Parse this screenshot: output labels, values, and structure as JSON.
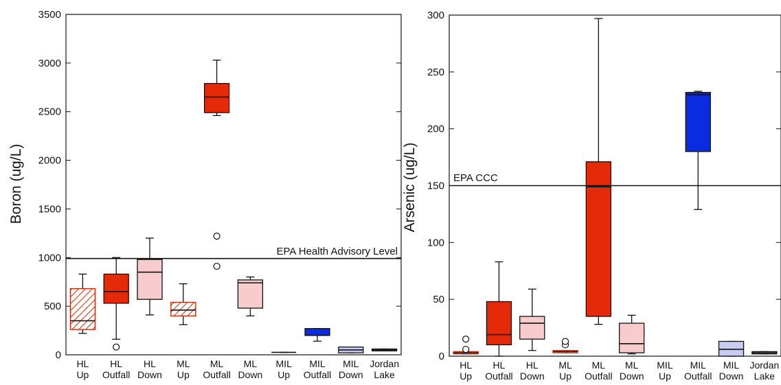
{
  "chart_data": [
    {
      "type": "box",
      "ylabel": "Boron (ug/L)",
      "ylim": [
        0,
        3500
      ],
      "yticks": [
        0,
        500,
        1000,
        1500,
        2000,
        2500,
        3000,
        3500
      ],
      "categories": [
        [
          "HL",
          "Up"
        ],
        [
          "HL",
          "Outfall"
        ],
        [
          "HL",
          "Down"
        ],
        [
          "ML",
          "Up"
        ],
        [
          "ML",
          "Outfall"
        ],
        [
          "ML",
          "Down"
        ],
        [
          "MIL",
          "Up"
        ],
        [
          "MIL",
          "Outfall"
        ],
        [
          "MIL",
          "Down"
        ],
        [
          "Jordan",
          "Lake"
        ]
      ],
      "boxes": [
        {
          "whisker_low": 220,
          "q1": 260,
          "median": 350,
          "q3": 680,
          "whisker_high": 830,
          "outliers": [],
          "fill": "#ffffff",
          "stroke": "#cc2200",
          "hatch": true
        },
        {
          "whisker_low": 160,
          "q1": 530,
          "median": 650,
          "q3": 830,
          "whisker_high": 1000,
          "outliers": [
            80
          ],
          "fill": "#e42a08",
          "stroke": "#111111",
          "hatch": false
        },
        {
          "whisker_low": 410,
          "q1": 570,
          "median": 850,
          "q3": 980,
          "whisker_high": 1200,
          "outliers": [],
          "fill": "#f8cccc",
          "stroke": "#111111",
          "hatch": false
        },
        {
          "whisker_low": 310,
          "q1": 400,
          "median": 460,
          "q3": 540,
          "whisker_high": 730,
          "outliers": [],
          "fill": "#ffffff",
          "stroke": "#cc2200",
          "hatch": true
        },
        {
          "whisker_low": 2460,
          "q1": 2490,
          "median": 2650,
          "q3": 2790,
          "whisker_high": 3030,
          "outliers": [
            1220,
            910
          ],
          "fill": "#e42a08",
          "stroke": "#111111",
          "hatch": false
        },
        {
          "whisker_low": 400,
          "q1": 480,
          "median": 740,
          "q3": 770,
          "whisker_high": 800,
          "outliers": [],
          "fill": "#f8cccc",
          "stroke": "#111111",
          "hatch": false
        },
        {
          "whisker_low": 25,
          "q1": 25,
          "median": 25,
          "q3": 25,
          "whisker_high": 25,
          "outliers": [],
          "fill": "#ffffff",
          "stroke": "#111111",
          "hatch": false,
          "line_only": true
        },
        {
          "whisker_low": 140,
          "q1": 200,
          "median": 200,
          "q3": 270,
          "whisker_high": 270,
          "outliers": [],
          "fill": "#0a2be0",
          "stroke": "#111111",
          "hatch": false
        },
        {
          "whisker_low": 20,
          "q1": 20,
          "median": 50,
          "q3": 80,
          "whisker_high": 80,
          "outliers": [],
          "fill": "#c9cbf2",
          "stroke": "#111111",
          "hatch": false
        },
        {
          "whisker_low": 40,
          "q1": 40,
          "median": 50,
          "q3": 60,
          "whisker_high": 60,
          "outliers": [],
          "fill": "#c9cbf2",
          "stroke": "#111111",
          "hatch": false
        }
      ],
      "reference_line": {
        "value": 990,
        "label": "EPA Health Advisory Level"
      }
    },
    {
      "type": "box",
      "ylabel": "Arsenic (ug/L)",
      "ylim": [
        0,
        300
      ],
      "yticks": [
        0,
        50,
        100,
        150,
        200,
        250,
        300
      ],
      "categories": [
        [
          "HL",
          "Up"
        ],
        [
          "HL",
          "Outfall"
        ],
        [
          "HL",
          "Down"
        ],
        [
          "ML",
          "Up"
        ],
        [
          "ML",
          "Outfall"
        ],
        [
          "ML",
          "Down"
        ],
        [
          "MIL",
          "Up"
        ],
        [
          "MIL",
          "Outfall"
        ],
        [
          "MIL",
          "Down"
        ],
        [
          "Jordan",
          "Lake"
        ]
      ],
      "boxes": [
        {
          "whisker_low": 2,
          "q1": 2,
          "median": 3,
          "q3": 4,
          "whisker_high": 4,
          "outliers": [
            6,
            15
          ],
          "fill": "#ffffff",
          "stroke": "#cc2200",
          "hatch": true
        },
        {
          "whisker_low": 0,
          "q1": 10,
          "median": 19,
          "q3": 48,
          "whisker_high": 83,
          "outliers": [],
          "fill": "#e42a08",
          "stroke": "#111111",
          "hatch": false
        },
        {
          "whisker_low": 5,
          "q1": 15,
          "median": 29,
          "q3": 35,
          "whisker_high": 59,
          "outliers": [],
          "fill": "#f8cccc",
          "stroke": "#111111",
          "hatch": false
        },
        {
          "whisker_low": 3,
          "q1": 3,
          "median": 4,
          "q3": 5,
          "whisker_high": 5,
          "outliers": [
            10,
            13
          ],
          "fill": "#ffffff",
          "stroke": "#cc2200",
          "hatch": true
        },
        {
          "whisker_low": 28,
          "q1": 35,
          "median": 149,
          "q3": 171,
          "whisker_high": 297,
          "outliers": [],
          "fill": "#e42a08",
          "stroke": "#111111",
          "hatch": false
        },
        {
          "whisker_low": 2,
          "q1": 3,
          "median": 11,
          "q3": 29,
          "whisker_high": 36,
          "outliers": [],
          "fill": "#f8cccc",
          "stroke": "#111111",
          "hatch": false
        },
        null,
        {
          "whisker_low": 129,
          "q1": 180,
          "median": 230,
          "q3": 232,
          "whisker_high": 233,
          "outliers": [],
          "fill": "#0a2be0",
          "stroke": "#111111",
          "hatch": false
        },
        {
          "whisker_low": 0,
          "q1": 0,
          "median": 6,
          "q3": 13,
          "whisker_high": 13,
          "outliers": [],
          "fill": "#c9cbf2",
          "stroke": "#111111",
          "hatch": false
        },
        {
          "whisker_low": 2,
          "q1": 2,
          "median": 3,
          "q3": 4,
          "whisker_high": 4,
          "outliers": [],
          "fill": "#c9cbf2",
          "stroke": "#111111",
          "hatch": false
        }
      ],
      "reference_line": {
        "value": 150,
        "label": "EPA CCC"
      }
    }
  ]
}
